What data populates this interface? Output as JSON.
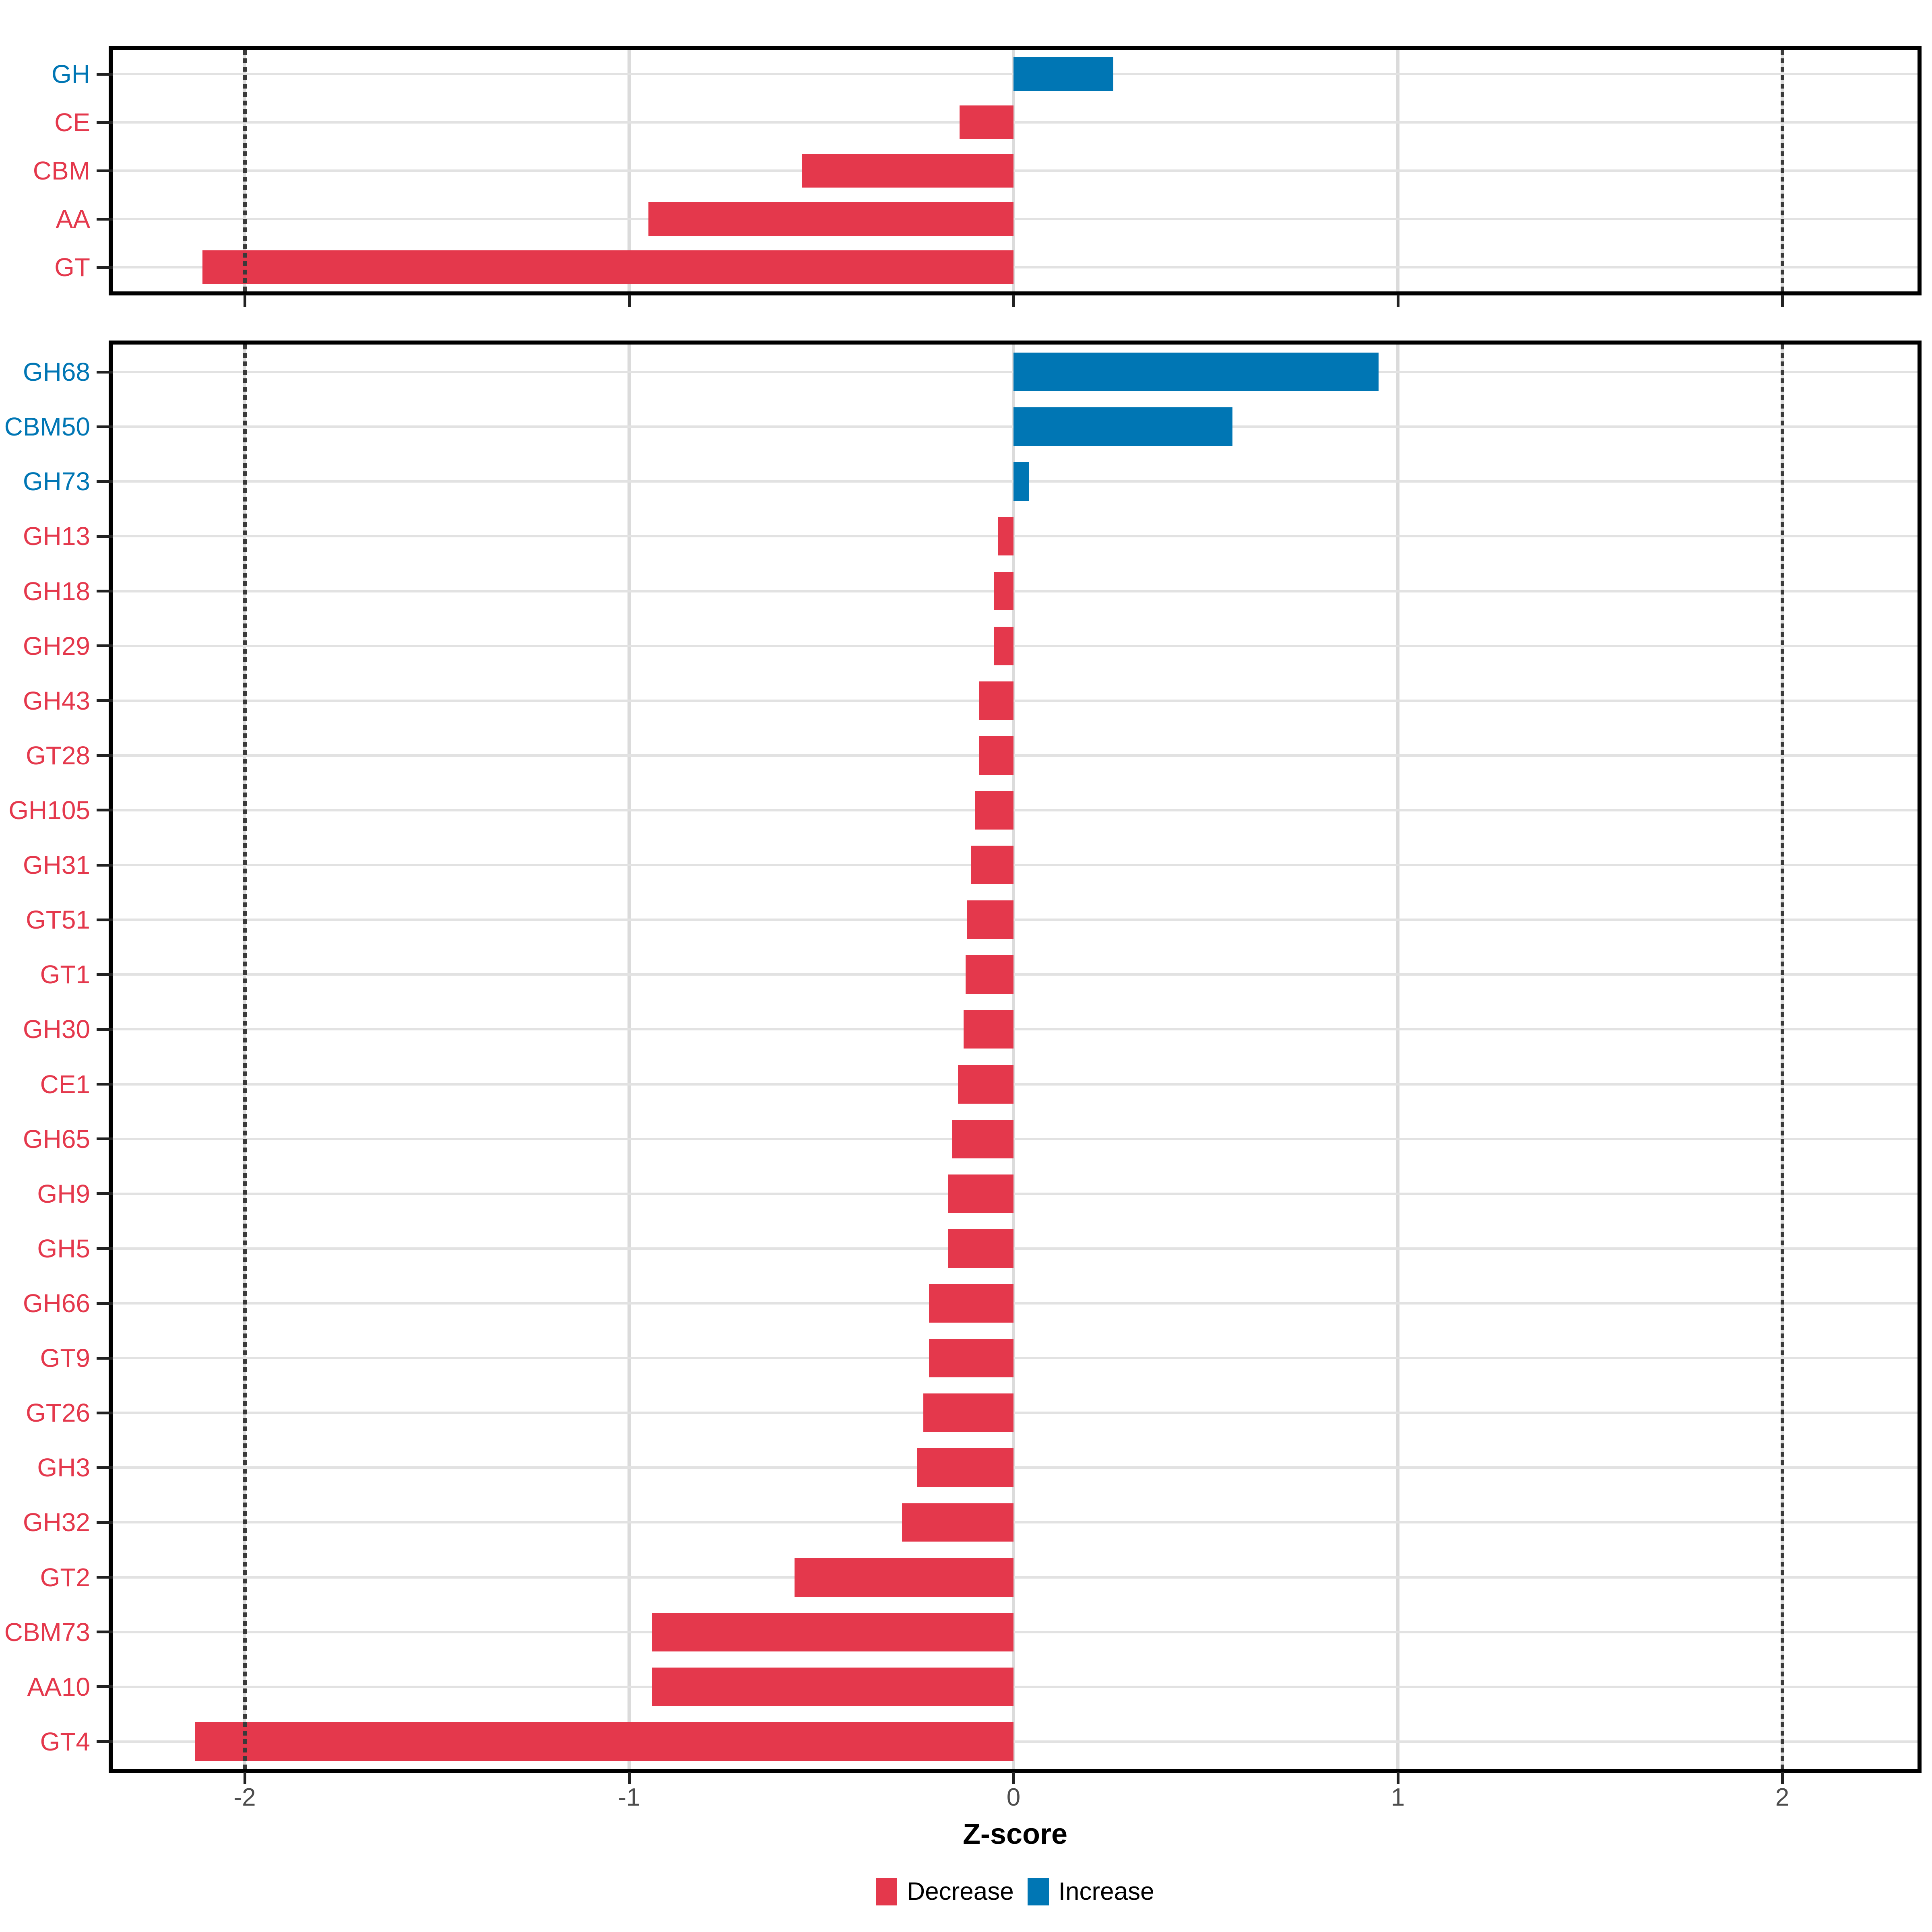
{
  "figure": {
    "background": "#FFFFFF"
  },
  "colors": {
    "decrease": "#E4384C",
    "increase": "#0076B4",
    "grid_vertical": "#DBDBDB",
    "grid_horizontal": "#E2E2E2",
    "reference": "#3A3A3A",
    "axis_text": "#4D4D4D",
    "tick": "#222222",
    "panel_border": "#000000",
    "background": "#FFFFFF"
  },
  "axis": {
    "title": "Z-score",
    "tick_values": [
      -2,
      -1,
      0,
      1,
      2
    ],
    "tick_labels": [
      "-2",
      "-1",
      "0",
      "1",
      "2"
    ],
    "reference_lines": [
      -2,
      2
    ]
  },
  "legend": {
    "position": "bottom",
    "items": [
      {
        "label": "Decrease",
        "color_key": "decrease"
      },
      {
        "label": "Increase",
        "color_key": "increase"
      }
    ]
  },
  "chart_data": [
    {
      "panel": "top",
      "type": "bar",
      "orientation": "horizontal",
      "title": "",
      "xlabel": "Z-score",
      "ylabel": "",
      "xlim": [
        -2.35,
        2.35
      ],
      "xticks": [
        -2,
        -1,
        0,
        1,
        2
      ],
      "reference_lines": [
        -2,
        2
      ],
      "grid": true,
      "legend_position": "bottom",
      "categories": [
        "GH",
        "CE",
        "CBM",
        "AA",
        "GT"
      ],
      "values": [
        0.26,
        -0.14,
        -0.55,
        -0.95,
        -2.11
      ]
    },
    {
      "panel": "bottom",
      "type": "bar",
      "orientation": "horizontal",
      "title": "",
      "xlabel": "Z-score",
      "ylabel": "",
      "xlim": [
        -2.35,
        2.35
      ],
      "xticks": [
        -2,
        -1,
        0,
        1,
        2
      ],
      "reference_lines": [
        -2,
        2
      ],
      "grid": true,
      "legend_position": "bottom",
      "categories": [
        "GH68",
        "CBM50",
        "GH73",
        "GH13",
        "GH18",
        "GH29",
        "GH43",
        "GT28",
        "GH105",
        "GH31",
        "GT51",
        "GT1",
        "GH30",
        "CE1",
        "GH65",
        "GH9",
        "GH5",
        "GH66",
        "GT9",
        "GT26",
        "GH3",
        "GH32",
        "GT2",
        "CBM73",
        "AA10",
        "GT4"
      ],
      "values": [
        0.95,
        0.57,
        0.04,
        -0.04,
        -0.05,
        -0.05,
        -0.09,
        -0.09,
        -0.1,
        -0.11,
        -0.12,
        -0.125,
        -0.13,
        -0.145,
        -0.16,
        -0.17,
        -0.17,
        -0.22,
        -0.22,
        -0.235,
        -0.25,
        -0.29,
        -0.57,
        -0.94,
        -0.94,
        -2.13
      ]
    }
  ]
}
